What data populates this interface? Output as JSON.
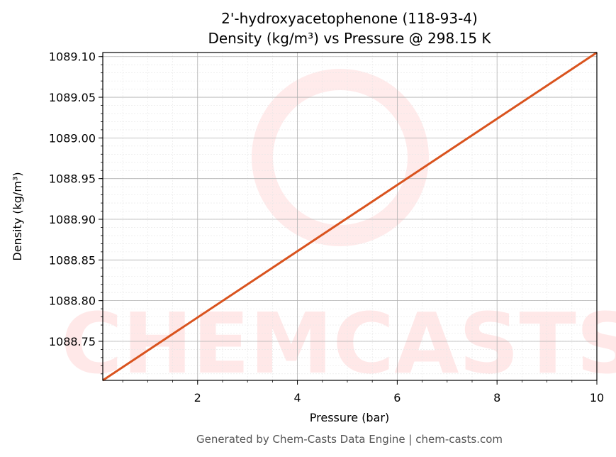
{
  "chart_data": {
    "type": "line",
    "title": "2'-hydroxyacetophenone (118-93-4)",
    "subtitle": "Density (kg/m³) vs Pressure @ 298.15 K",
    "x_label": "Pressure (bar)",
    "y_label": "Density (kg/m³)",
    "footer": "Generated by Chem-Casts Data Engine | chem-casts.com",
    "watermark": "CHEMCASTS",
    "x": [
      0.1,
      10
    ],
    "series": [
      {
        "name": "Density",
        "color": "#d9531e",
        "values": [
          1088.702,
          1089.105
        ]
      }
    ],
    "xlim": [
      0.1,
      10
    ],
    "ylim": [
      1088.702,
      1089.105
    ],
    "xticks": [
      2,
      4,
      6,
      8,
      10
    ],
    "yticks": [
      {
        "value": 1088.75,
        "label": "1088.75"
      },
      {
        "value": 1088.8,
        "label": "1088.80"
      },
      1088.85,
      {
        "value": 1088.9,
        "label": "1088.90"
      },
      1088.95,
      {
        "value": 1089.0,
        "label": "1089.00"
      },
      1089.05,
      {
        "value": 1089.1,
        "label": "1089.10"
      }
    ],
    "grid": true
  }
}
